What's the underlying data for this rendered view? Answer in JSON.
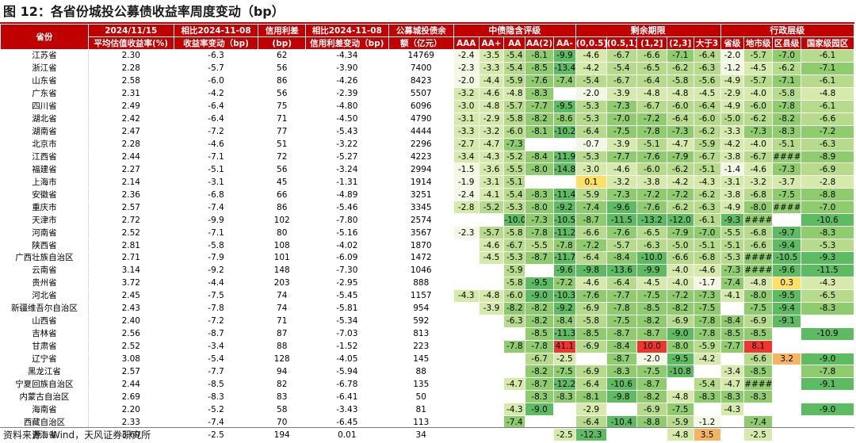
{
  "title": "图 12：各省份城投公募债收益率周度变动（bp）",
  "source": "资料来源：Wind，天风证券研究所",
  "colors": {
    "header_bg": "#c00000",
    "header_text": "#ffffff",
    "negative_scale": [
      "#f3f8e4",
      "#d6ebab",
      "#b6dc8b",
      "#8fcc6e",
      "#5dbb62"
    ],
    "positive_mild": "#ffe066",
    "positive_orange": "#f4b460",
    "positive_strong": "#f0352f"
  },
  "headers": {
    "province": "省份",
    "yield_line1": "2024/11/15",
    "yield_line2": "平均估值收益率(%)",
    "chg_line1": "相比2024-11-08",
    "chg_line2": "收益率变动（bp)",
    "spread_line1": "信用利差",
    "spread_line2": "(bp)",
    "spread_chg_line1": "相比2024-11-08",
    "spread_chg_line2": "信用利差变动（bp)",
    "balance_line1": "公募城投债余",
    "balance_line2": "额（亿元）",
    "group_rating": "中债隐含评级",
    "group_term": "剩余期限",
    "group_admin": "行政层级",
    "sub": [
      "AAA",
      "AA+",
      "AA",
      "AA(2)",
      "AA-",
      "(0,0.5]",
      "(0.5,1]",
      "(1,2]",
      "(2,3]",
      "大于3",
      "省级",
      "地市级",
      "区县级",
      "国家级园区"
    ]
  },
  "rows": [
    {
      "province": "江苏省",
      "yield": "2.30",
      "chg": "-6.3",
      "spread": "62",
      "spread_chg": "-4.34",
      "balance": "14769",
      "g": [
        "-2.4",
        "-3.5",
        "-5.4",
        "-8.1",
        "-9.9",
        "-4.6",
        "-6.7",
        "-6.6",
        "-7.1",
        "-6.4",
        "-2.0",
        "-5.7",
        "-7.0",
        "-6.1"
      ]
    },
    {
      "province": "浙江省",
      "yield": "2.28",
      "chg": "-5.7",
      "spread": "56",
      "spread_chg": "-3.90",
      "balance": "7400",
      "g": [
        "-2.3",
        "-3.3",
        "-5.4",
        "-8.5",
        "-13.4",
        "-4.2",
        "-5.4",
        "-6.5",
        "-6.2",
        "-6.3",
        "-1.2",
        "-4.5",
        "-6.2",
        "-7.1"
      ]
    },
    {
      "province": "山东省",
      "yield": "2.58",
      "chg": "-6.0",
      "spread": "86",
      "spread_chg": "-4.26",
      "balance": "8423",
      "g": [
        "-2.0",
        "-4.4",
        "-5.9",
        "-7.6",
        "-7.4",
        "-5.4",
        "-6.7",
        "-6.4",
        "-5.8",
        "-5.6",
        "-4.9",
        "-5.7",
        "-7.1",
        "-6.1"
      ]
    },
    {
      "province": "广东省",
      "yield": "2.31",
      "chg": "-4.2",
      "spread": "56",
      "spread_chg": "-2.39",
      "balance": "5507",
      "g": [
        "-3.2",
        "-4.6",
        "-4.8",
        "-8.3",
        "",
        "-2.0",
        "-3.9",
        "-4.8",
        "-4.8",
        "-4.5",
        "-2.9",
        "-4.0",
        "-5.8",
        "-4.8"
      ]
    },
    {
      "province": "四川省",
      "yield": "2.49",
      "chg": "-6.4",
      "spread": "75",
      "spread_chg": "-4.80",
      "balance": "6096",
      "g": [
        "-3.0",
        "-4.8",
        "-5.7",
        "-7.7",
        "-9.5",
        "-5.3",
        "-7.3",
        "-6.7",
        "-6.0",
        "-6.4",
        "-4.9",
        "-6.0",
        "-7.8",
        "-6.1"
      ]
    },
    {
      "province": "湖北省",
      "yield": "2.42",
      "chg": "-6.4",
      "spread": "71",
      "spread_chg": "-4.50",
      "balance": "4790",
      "g": [
        "-3.1",
        "-2.9",
        "-5.8",
        "-8.2",
        "-8.6",
        "-5.3",
        "-7.0",
        "-7.2",
        "-6.4",
        "-6.0",
        "-5.0",
        "-6.2",
        "-8.2",
        "-6.6"
      ]
    },
    {
      "province": "湖南省",
      "yield": "2.47",
      "chg": "-7.2",
      "spread": "77",
      "spread_chg": "-5.43",
      "balance": "4444",
      "g": [
        "-3.3",
        "-3.2",
        "-6.0",
        "-8.1",
        "-10.2",
        "-6.4",
        "-7.5",
        "-7.8",
        "-7.3",
        "-6.2",
        "-3.3",
        "-7.3",
        "-8.3",
        "-7.2"
      ]
    },
    {
      "province": "北京市",
      "yield": "2.28",
      "chg": "-4.6",
      "spread": "51",
      "spread_chg": "-3.22",
      "balance": "2296",
      "g": [
        "-2.7",
        "-4.7",
        "-7.3",
        "",
        "",
        "-0.7",
        "-3.9",
        "-5.1",
        "-4.7",
        "-5.9",
        "-4.2",
        "-4.0",
        "-5.1",
        "-6.3"
      ]
    },
    {
      "province": "江西省",
      "yield": "2.44",
      "chg": "-7.1",
      "spread": "72",
      "spread_chg": "-5.27",
      "balance": "4223",
      "g": [
        "-3.4",
        "-4.3",
        "-5.2",
        "-8.4",
        "-11.9",
        "-5.3",
        "-7.7",
        "-7.6",
        "-7.9",
        "-6.7",
        "-3.8",
        "-6.7",
        "####",
        "-8.9"
      ]
    },
    {
      "province": "福建省",
      "yield": "2.27",
      "chg": "-5.1",
      "spread": "56",
      "spread_chg": "-3.24",
      "balance": "2994",
      "g": [
        "-1.5",
        "-3.6",
        "-5.5",
        "-8.0",
        "-14.8",
        "-3.0",
        "-4.6",
        "-6.0",
        "-6.2",
        "-5.1",
        "-1.4",
        "-4.6",
        "-7.3",
        "-6.9"
      ]
    },
    {
      "province": "上海市",
      "yield": "2.14",
      "chg": "-3.1",
      "spread": "45",
      "spread_chg": "-1.31",
      "balance": "1914",
      "g": [
        "-1.9",
        "-3.1",
        "-5.1",
        "",
        "",
        "0.1",
        "-3.2",
        "-3.8",
        "-4.2",
        "-4.3",
        "-3.1",
        "-3.2",
        "-3.7",
        "-2.8"
      ]
    },
    {
      "province": "安徽省",
      "yield": "2.36",
      "chg": "-6.8",
      "spread": "66",
      "spread_chg": "-4.89",
      "balance": "3251",
      "g": [
        "-2.4",
        "-4.1",
        "-5.4",
        "-8.3",
        "-11.4",
        "-5.9",
        "-7.3",
        "-7.2",
        "-7.2",
        "-6.2",
        "-3.8",
        "-6.8",
        "-7.5",
        "-8.8"
      ]
    },
    {
      "province": "重庆市",
      "yield": "2.57",
      "chg": "-7.4",
      "spread": "86",
      "spread_chg": "-5.46",
      "balance": "3345",
      "g": [
        "-2.8",
        "-5.2",
        "-5.3",
        "-8.0",
        "-9.2",
        "-7.4",
        "-9.6",
        "-7.6",
        "-6.2",
        "-6.3",
        "-4.9",
        "-8.0",
        "####",
        "-7.0"
      ]
    },
    {
      "province": "天津市",
      "yield": "2.72",
      "chg": "-9.9",
      "spread": "102",
      "spread_chg": "-7.80",
      "balance": "2574",
      "g": [
        "",
        "",
        "-10.0",
        "-7.3",
        "-10.5",
        "-8.7",
        "-11.5",
        "-13.2",
        "-12.0",
        "-6.1",
        "-9.3",
        "####",
        "",
        "-10.6"
      ]
    },
    {
      "province": "河南省",
      "yield": "2.52",
      "chg": "-7.1",
      "spread": "80",
      "spread_chg": "-5.16",
      "balance": "3567",
      "g": [
        "-2.3",
        "-5.7",
        "-5.8",
        "-7.8",
        "-11.2",
        "-6.6",
        "-7.6",
        "-6.5",
        "-7.9",
        "-7.0",
        "-5.5",
        "-6.8",
        "-9.7",
        "-8.3"
      ]
    },
    {
      "province": "陕西省",
      "yield": "2.81",
      "chg": "-5.8",
      "spread": "108",
      "spread_chg": "-4.02",
      "balance": "1870",
      "g": [
        "",
        "-4.6",
        "-6.7",
        "-5.5",
        "-7.8",
        "-7.2",
        "-5.7",
        "-6.3",
        "-5.0",
        "-5.1",
        "-5.1",
        "-6.6",
        "-9.4",
        "-5.3"
      ]
    },
    {
      "province": "广西壮族自治区",
      "yield": "2.71",
      "chg": "-7.9",
      "spread": "101",
      "spread_chg": "-6.09",
      "balance": "1472",
      "g": [
        "",
        "-4.5",
        "-5.3",
        "-8.7",
        "-11.7",
        "-6.4",
        "-8.4",
        "-10.0",
        "-6.6",
        "-6.8",
        "-5.3",
        "####",
        "-10.5",
        "-9.3"
      ]
    },
    {
      "province": "云南省",
      "yield": "3.14",
      "chg": "-9.2",
      "spread": "148",
      "spread_chg": "-7.30",
      "balance": "1046",
      "g": [
        "",
        "",
        "-5.9",
        "",
        "-9.6",
        "-9.8",
        "-13.6",
        "-9.9",
        "-4.0",
        "-4.6",
        "-7.3",
        "####",
        "-9.6",
        "-11.5"
      ]
    },
    {
      "province": "贵州省",
      "yield": "3.72",
      "chg": "-4.4",
      "spread": "203",
      "spread_chg": "-2.95",
      "balance": "888",
      "g": [
        "",
        "",
        "-5.8",
        "-9.5",
        "-7.2",
        "-4.6",
        "-6.4",
        "-4.5",
        "-4.0",
        "-1.7",
        "-7.4",
        "-4.8",
        "0.3",
        "-4.3"
      ]
    },
    {
      "province": "河北省",
      "yield": "2.45",
      "chg": "-7.5",
      "spread": "74",
      "spread_chg": "-5.45",
      "balance": "1157",
      "g": [
        "-4.3",
        "-4.8",
        "-6.0",
        "-9.0",
        "-10.3",
        "-7.6",
        "-7.7",
        "-7.5",
        "-7.2",
        "-7.3",
        "-4.1",
        "-8.0",
        "-9.5",
        "-6.5"
      ]
    },
    {
      "province": "新疆维吾尔自治区",
      "yield": "2.43",
      "chg": "-7.8",
      "spread": "74",
      "spread_chg": "-5.81",
      "balance": "954",
      "g": [
        "",
        "-3.9",
        "-8.2",
        "-8.2",
        "-9.2",
        "-6.9",
        "-7.8",
        "-8.5",
        "-8.2",
        "-7.5",
        "",
        "-7.5",
        "-9.4",
        "-8.3"
      ]
    },
    {
      "province": "山西省",
      "yield": "2.40",
      "chg": "-7.2",
      "spread": "71",
      "spread_chg": "-5.34",
      "balance": "592",
      "g": [
        "",
        "",
        "-6.3",
        "-8.2",
        "-8.4",
        "-5.8",
        "-7.5",
        "-8.2",
        "-6.9",
        "-7.8",
        "-8.4",
        "-6.9",
        "-9.1",
        ""
      ]
    },
    {
      "province": "吉林省",
      "yield": "2.56",
      "chg": "-8.7",
      "spread": "87",
      "spread_chg": "-7.03",
      "balance": "813",
      "g": [
        "",
        "",
        "",
        "-8.5",
        "-11.3",
        "-8.5",
        "-8.7",
        "-8.7",
        "-9.0",
        "-7.8",
        "-8.5",
        "-8.5",
        "",
        "-10.9"
      ]
    },
    {
      "province": "甘肃省",
      "yield": "2.52",
      "chg": "-3.4",
      "spread": "88",
      "spread_chg": "-1.52",
      "balance": "223",
      "g": [
        "",
        "",
        "-7.8",
        "-7.8",
        "41.1",
        "-6.9",
        "-8.4",
        "10.0",
        "-8.0",
        "-5.9",
        "-7.7",
        "8.1",
        "",
        ""
      ]
    },
    {
      "province": "辽宁省",
      "yield": "3.08",
      "chg": "-5.4",
      "spread": "128",
      "spread_chg": "-4.05",
      "balance": "145",
      "g": [
        "",
        "",
        "",
        "-6.7",
        "-2.5",
        "",
        "-8.7",
        "-2.0",
        "-9.5",
        "-4.2",
        "",
        "-6.6",
        "3.2",
        "-9.0"
      ]
    },
    {
      "province": "黑龙江省",
      "yield": "2.57",
      "chg": "-7.7",
      "spread": "94",
      "spread_chg": "-5.94",
      "balance": "88",
      "g": [
        "",
        "",
        "",
        "-8.2",
        "-7.5",
        "-6.9",
        "-8.3",
        "-7.5",
        "-10.8",
        "",
        "-3.4",
        "-8.5",
        "",
        "-7.8"
      ]
    },
    {
      "province": "宁夏回族自治区",
      "yield": "2.44",
      "chg": "-8.5",
      "spread": "82",
      "spread_chg": "-6.78",
      "balance": "135",
      "g": [
        "",
        "",
        "-4.7",
        "-8.7",
        "-12.2",
        "-6.4",
        "-10.6",
        "-8.7",
        "",
        "-5.4",
        "-4.7",
        "####",
        "",
        "-9.1"
      ]
    },
    {
      "province": "内蒙古自治区",
      "yield": "2.69",
      "chg": "-8.3",
      "spread": "83",
      "spread_chg": "-6.41",
      "balance": "50",
      "g": [
        "",
        "",
        "",
        "-8.3",
        "-8.3",
        "-8.1",
        "-9.8",
        "-8.2",
        "-4.8",
        "-8.3",
        "-8.3",
        "-8.3",
        "",
        ""
      ]
    },
    {
      "province": "海南省",
      "yield": "2.20",
      "chg": "-5.2",
      "spread": "58",
      "spread_chg": "-3.43",
      "balance": "81",
      "g": [
        "",
        "",
        "-4.3",
        "-9.0",
        "",
        "-2.9",
        "",
        "-6.9",
        "-7.5",
        "",
        "-4.3",
        "",
        "",
        "-9.0"
      ]
    },
    {
      "province": "西藏自治区",
      "yield": "2.33",
      "chg": "-7.4",
      "spread": "70",
      "spread_chg": "-6.45",
      "balance": "113",
      "g": [
        "",
        "",
        "-7.4",
        "",
        "",
        "-6.4",
        "-10.4",
        "-8.8",
        "-5.9",
        "-1.2",
        "",
        "-7.4",
        "",
        ""
      ]
    },
    {
      "province": "青海省",
      "yield": "3.69",
      "chg": "-2.5",
      "spread": "194",
      "spread_chg": "0.01",
      "balance": "34",
      "g": [
        "",
        "",
        "",
        "",
        "-2.5",
        "-12.3",
        "",
        "",
        "-4.8",
        "3.5",
        "",
        "-2.5",
        "",
        ""
      ]
    }
  ]
}
